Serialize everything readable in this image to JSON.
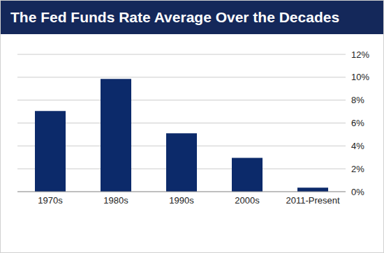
{
  "chart_data": {
    "type": "bar",
    "title": "The Fed Funds Rate Average Over the Decades",
    "categories": [
      "1970s",
      "1980s",
      "1990s",
      "2000s",
      "2011-Present"
    ],
    "values": [
      7.05,
      9.85,
      5.1,
      2.95,
      0.35
    ],
    "color": "#0c2a6a",
    "ylim": [
      0,
      12
    ],
    "yticks": [
      {
        "value": 0,
        "label": "0%"
      },
      {
        "value": 2,
        "label": "2%"
      },
      {
        "value": 4,
        "label": "4%"
      },
      {
        "value": 6,
        "label": "6%"
      },
      {
        "value": 8,
        "label": "8%"
      },
      {
        "value": 10,
        "label": "10%"
      },
      {
        "value": 12,
        "label": "12%"
      }
    ],
    "grid": true
  }
}
